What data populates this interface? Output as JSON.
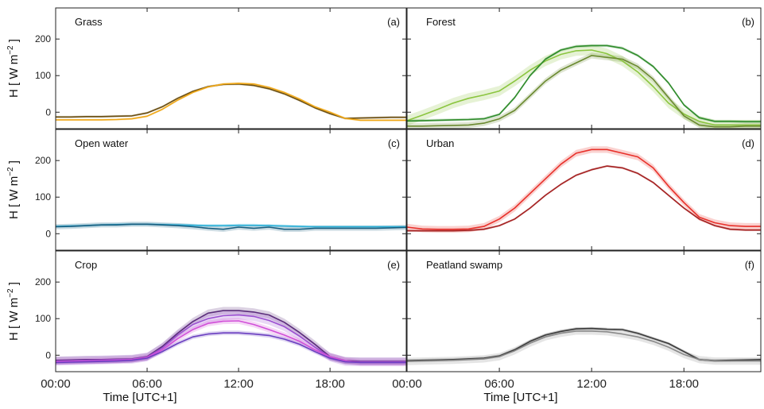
{
  "figure": {
    "ylabel": "H  [ W m",
    "ylabel_exp": "−2",
    "ylabel_close": " ]",
    "xlabel": "Time  [UTC+1]"
  },
  "chart_data": [
    {
      "type": "line",
      "title": "Grass",
      "letter": "(a)",
      "x": [
        0,
        1,
        2,
        3,
        4,
        5,
        6,
        7,
        8,
        9,
        10,
        11,
        12,
        13,
        14,
        15,
        16,
        17,
        18,
        19,
        20,
        21,
        22,
        23
      ],
      "xlim": [
        0,
        23
      ],
      "ylim": [
        -45,
        285
      ],
      "yticks": [
        0,
        100,
        200
      ],
      "xticks": [
        "00:00",
        "06:00",
        "12:00",
        "18:00"
      ],
      "series": [
        {
          "color": "#6b4f12",
          "band": 3,
          "values": [
            -13,
            -13,
            -12,
            -12,
            -11,
            -10,
            -2,
            15,
            38,
            57,
            70,
            76,
            77,
            73,
            64,
            50,
            32,
            12,
            -4,
            -17,
            -16,
            -15,
            -14,
            -14
          ]
        },
        {
          "color": "#f0a818",
          "band": 3,
          "values": [
            -21,
            -21,
            -21,
            -21,
            -20,
            -18,
            -11,
            8,
            33,
            54,
            69,
            77,
            79,
            77,
            68,
            54,
            36,
            15,
            0,
            -17,
            -22,
            -22,
            -22,
            -22
          ]
        }
      ]
    },
    {
      "type": "line",
      "title": "Forest",
      "letter": "(b)",
      "x": [
        0,
        1,
        2,
        3,
        4,
        5,
        6,
        7,
        8,
        9,
        10,
        11,
        12,
        13,
        14,
        15,
        16,
        17,
        18,
        19,
        20,
        21,
        22,
        23
      ],
      "xlim": [
        0,
        23
      ],
      "ylim": [
        -45,
        285
      ],
      "yticks": [
        0,
        100,
        200
      ],
      "xticks": [
        "00:00",
        "06:00",
        "12:00",
        "18:00"
      ],
      "series": [
        {
          "color": "#8bc53f",
          "band": 14,
          "values": [
            -23,
            -8,
            8,
            25,
            38,
            47,
            58,
            85,
            115,
            140,
            158,
            168,
            170,
            160,
            140,
            110,
            70,
            25,
            -5,
            -25,
            -35,
            -35,
            -35,
            -35
          ]
        },
        {
          "color": "#2e8b2a",
          "band": 4,
          "values": [
            -24,
            -23,
            -22,
            -21,
            -20,
            -18,
            -6,
            40,
            100,
            145,
            170,
            180,
            182,
            182,
            175,
            155,
            125,
            80,
            20,
            -15,
            -25,
            -25,
            -26,
            -26
          ]
        },
        {
          "color": "#6b8a30",
          "band": 8,
          "values": [
            -38,
            -38,
            -37,
            -36,
            -35,
            -30,
            -18,
            5,
            45,
            85,
            115,
            135,
            155,
            150,
            145,
            125,
            90,
            40,
            -10,
            -35,
            -40,
            -40,
            -38,
            -38
          ]
        }
      ]
    },
    {
      "type": "line",
      "title": "Open water",
      "letter": "(c)",
      "x": [
        0,
        1,
        2,
        3,
        4,
        5,
        6,
        7,
        8,
        9,
        10,
        11,
        12,
        13,
        14,
        15,
        16,
        17,
        18,
        19,
        20,
        21,
        22,
        23
      ],
      "xlim": [
        0,
        23
      ],
      "ylim": [
        -45,
        285
      ],
      "yticks": [
        0,
        100,
        200
      ],
      "xticks": [
        "00:00",
        "06:00",
        "12:00",
        "18:00"
      ],
      "series": [
        {
          "color": "#2ab0d8",
          "band": 4,
          "values": [
            20,
            21,
            22,
            24,
            25,
            26,
            26,
            25,
            24,
            23,
            22,
            22,
            23,
            23,
            22,
            21,
            20,
            19,
            19,
            19,
            19,
            19,
            19,
            19
          ]
        },
        {
          "color": "#1a5f80",
          "band": 7,
          "values": [
            19,
            20,
            22,
            24,
            24,
            26,
            26,
            24,
            22,
            19,
            15,
            12,
            18,
            15,
            18,
            12,
            12,
            15,
            15,
            15,
            15,
            15,
            16,
            17
          ]
        }
      ]
    },
    {
      "type": "line",
      "title": "Urban",
      "letter": "(d)",
      "x": [
        0,
        1,
        2,
        3,
        4,
        5,
        6,
        7,
        8,
        9,
        10,
        11,
        12,
        13,
        14,
        15,
        16,
        17,
        18,
        19,
        20,
        21,
        22,
        23
      ],
      "xlim": [
        0,
        23
      ],
      "ylim": [
        -45,
        285
      ],
      "yticks": [
        0,
        100,
        200
      ],
      "xticks": [
        "00:00",
        "06:00",
        "12:00",
        "18:00"
      ],
      "series": [
        {
          "color": "#e8302a",
          "band": 9,
          "values": [
            18,
            13,
            12,
            12,
            13,
            20,
            40,
            70,
            110,
            150,
            190,
            220,
            230,
            230,
            220,
            210,
            180,
            130,
            85,
            45,
            30,
            22,
            20,
            20
          ]
        },
        {
          "color": "#a52222",
          "band": 3,
          "values": [
            8,
            8,
            8,
            8,
            9,
            12,
            22,
            40,
            70,
            105,
            135,
            160,
            175,
            185,
            180,
            165,
            140,
            105,
            70,
            40,
            22,
            12,
            10,
            10
          ]
        }
      ]
    },
    {
      "type": "line",
      "title": "Crop",
      "letter": "(e)",
      "x": [
        0,
        1,
        2,
        3,
        4,
        5,
        6,
        7,
        8,
        9,
        10,
        11,
        12,
        13,
        14,
        15,
        16,
        17,
        18,
        19,
        20,
        21,
        22,
        23
      ],
      "xlim": [
        0,
        23
      ],
      "ylim": [
        -45,
        285
      ],
      "yticks": [
        0,
        100,
        200
      ],
      "xticks": [
        "00:00",
        "06:00",
        "12:00",
        "18:00"
      ],
      "series": [
        {
          "color": "#5a2c7a",
          "band": 10,
          "values": [
            -14,
            -13,
            -12,
            -12,
            -11,
            -10,
            -4,
            24,
            60,
            92,
            115,
            122,
            122,
            118,
            110,
            90,
            62,
            30,
            -4,
            -15,
            -17,
            -17,
            -17,
            -17
          ]
        },
        {
          "color": "#9b4fd1",
          "band": 12,
          "values": [
            -16,
            -15,
            -14,
            -13,
            -12,
            -11,
            -5,
            20,
            55,
            84,
            100,
            108,
            110,
            106,
            95,
            78,
            52,
            22,
            -5,
            -17,
            -18,
            -18,
            -18,
            -18
          ]
        },
        {
          "color": "#d14fd8",
          "band": 8,
          "values": [
            -18,
            -17,
            -16,
            -15,
            -14,
            -12,
            -6,
            15,
            45,
            70,
            87,
            93,
            94,
            84,
            70,
            55,
            38,
            15,
            -4,
            -15,
            -20,
            -20,
            -20,
            -20
          ]
        },
        {
          "color": "#6a3ec0",
          "band": 6,
          "values": [
            -20,
            -19,
            -18,
            -17,
            -16,
            -14,
            -8,
            10,
            32,
            50,
            58,
            61,
            61,
            58,
            54,
            44,
            30,
            10,
            -8,
            -18,
            -20,
            -20,
            -20,
            -20
          ]
        }
      ]
    },
    {
      "type": "line",
      "title": "Peatland swamp",
      "letter": "(f)",
      "x": [
        0,
        1,
        2,
        3,
        4,
        5,
        6,
        7,
        8,
        9,
        10,
        11,
        12,
        13,
        14,
        15,
        16,
        17,
        18,
        19,
        20,
        21,
        22,
        23
      ],
      "xlim": [
        0,
        23
      ],
      "ylim": [
        -45,
        285
      ],
      "yticks": [
        0,
        100,
        200
      ],
      "xticks": [
        "00:00",
        "06:00",
        "12:00",
        "18:00"
      ],
      "series": [
        {
          "color": "#3a3a3a",
          "band": 4,
          "values": [
            -15,
            -14,
            -13,
            -12,
            -10,
            -8,
            -2,
            15,
            38,
            55,
            65,
            72,
            73,
            71,
            70,
            60,
            46,
            32,
            10,
            -12,
            -15,
            -14,
            -13,
            -12
          ]
        },
        {
          "color": "#8a8a8a",
          "band": 10,
          "values": [
            -17,
            -16,
            -15,
            -14,
            -12,
            -10,
            -4,
            12,
            33,
            50,
            60,
            66,
            66,
            64,
            58,
            50,
            38,
            22,
            2,
            -12,
            -16,
            -16,
            -16,
            -16
          ]
        }
      ]
    }
  ]
}
